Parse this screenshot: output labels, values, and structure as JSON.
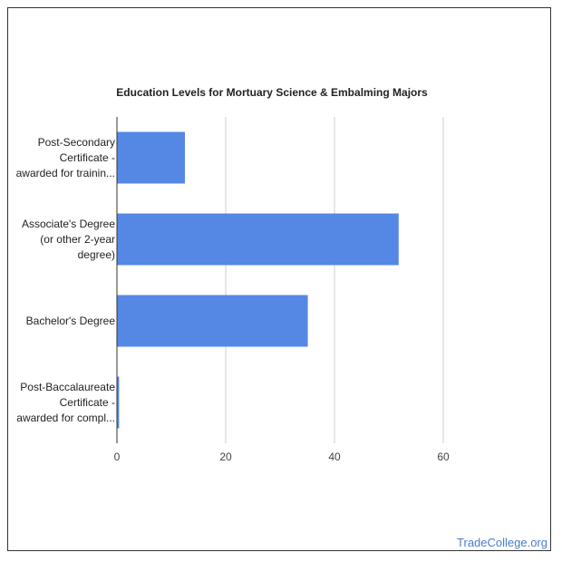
{
  "chart_data": {
    "type": "bar",
    "orientation": "horizontal",
    "title": "Education Levels for Mortuary Science & Embalming Majors",
    "categories": [
      [
        "Post-Secondary",
        "Certificate -",
        "awarded for trainin..."
      ],
      [
        "Associate's Degree",
        "(or other 2-year",
        "degree)"
      ],
      [
        "Bachelor's Degree"
      ],
      [
        "Post-Baccalaureate",
        "Certificate -",
        "awarded for compl..."
      ]
    ],
    "values": [
      12.5,
      51.8,
      35.1,
      0.4
    ],
    "xlim": [
      0,
      70
    ],
    "xticks": [
      0,
      20,
      40,
      60
    ],
    "grid": true,
    "bar_color": "#5587e4"
  },
  "watermark": "TradeCollege.org"
}
